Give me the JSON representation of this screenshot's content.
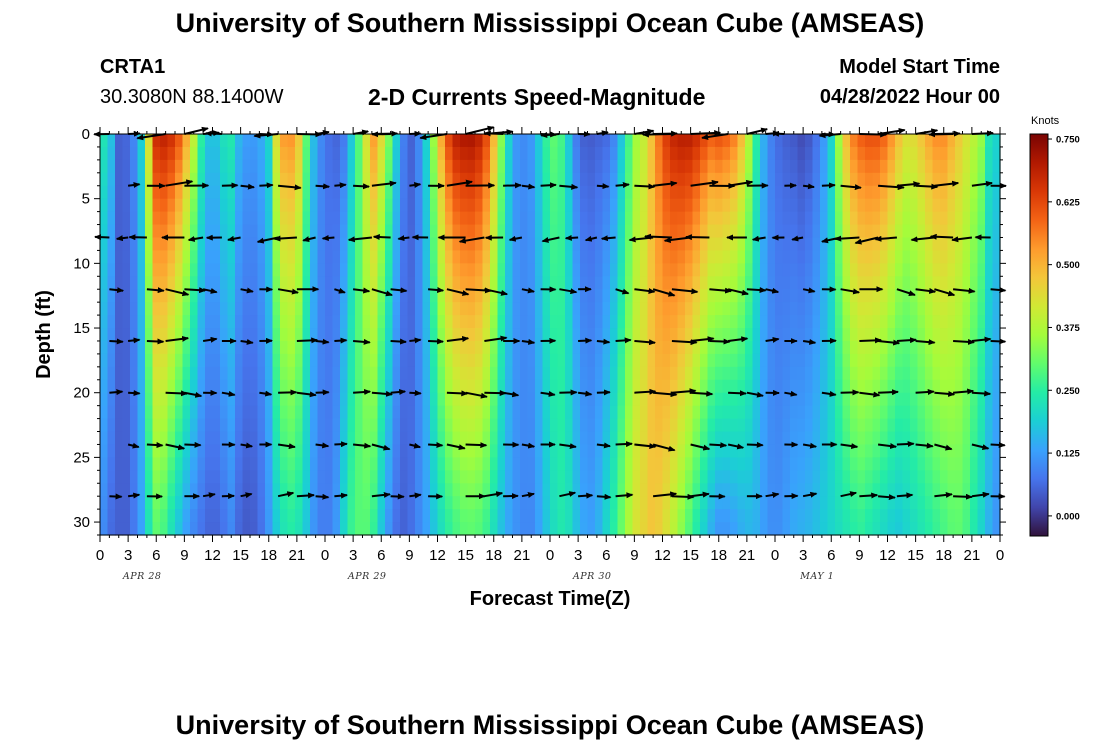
{
  "header": {
    "title": "University of Southern Mississippi Ocean Cube (AMSEAS)",
    "station_id": "CRTA1",
    "station_coords": "30.3080N  88.1400W",
    "plot_title": "2-D Currents Speed-Magnitude",
    "model_start_label": "Model Start Time",
    "model_start_value": "04/28/2022 Hour 00"
  },
  "footer": {
    "title": "University of Southern Mississippi Ocean Cube (AMSEAS)"
  },
  "colors": {
    "ramp": [
      "#30123b",
      "#4145ab",
      "#4675ed",
      "#39a2fc",
      "#1bcfd4",
      "#24eca6",
      "#61fc6c",
      "#a4fc3b",
      "#d1e834",
      "#f3c63a",
      "#fe9b2d",
      "#f36315",
      "#d93806",
      "#b11901",
      "#7a0403"
    ],
    "arrow": "#000000"
  },
  "chart_data": {
    "type": "heatmap",
    "title": "2-D Currents Speed-Magnitude",
    "xlabel": "Forecast Time(Z)",
    "ylabel": "Depth (ft)",
    "units": "Knots",
    "x_hours_range": [
      0,
      96
    ],
    "ylim": [
      0,
      31
    ],
    "y_ticks": [
      0,
      5,
      10,
      15,
      20,
      25,
      30
    ],
    "x_tick_labels": [
      "0",
      "3",
      "6",
      "9",
      "12",
      "15",
      "18",
      "21",
      "0",
      "3",
      "6",
      "9",
      "12",
      "15",
      "18",
      "21",
      "0",
      "3",
      "6",
      "9",
      "12",
      "15",
      "18",
      "21",
      "0",
      "3",
      "6",
      "9",
      "12",
      "15",
      "18",
      "21",
      "0"
    ],
    "day_labels": [
      "APR 28",
      "APR 29",
      "APR 30",
      "MAY 1"
    ],
    "colorbar": {
      "range": [
        -0.04,
        0.76
      ],
      "ticks": [
        0.0,
        0.125,
        0.25,
        0.375,
        0.5,
        0.625,
        0.75
      ],
      "tick_labels": [
        "0.000",
        "0.125",
        "0.250",
        "0.375",
        "0.500",
        "0.625",
        "0.750"
      ]
    },
    "depths_ft": [
      0,
      4,
      8,
      12,
      16,
      20,
      24,
      28
    ],
    "speed_profiles": {
      "hours": [
        0,
        1.5,
        2,
        3,
        4,
        5,
        5.5,
        6.5,
        8,
        9,
        10,
        11,
        12,
        13,
        14,
        15,
        16,
        17,
        18,
        19,
        20,
        21,
        22,
        23,
        24,
        25,
        26,
        27,
        28,
        29,
        30,
        31,
        32,
        33,
        34,
        35,
        36,
        37,
        38,
        39,
        40,
        41,
        42,
        43,
        44,
        45,
        46,
        47,
        48,
        49,
        50,
        51,
        52,
        53,
        54,
        55,
        56,
        57,
        58,
        59,
        60,
        61,
        62,
        63,
        64,
        65,
        66,
        67,
        68,
        69,
        70,
        71,
        72,
        73,
        74,
        75,
        76,
        77,
        78,
        79,
        80,
        81,
        82,
        83,
        84,
        85,
        86,
        87,
        88,
        89,
        90,
        91,
        92,
        93,
        94,
        95,
        96
      ],
      "surface": [
        0.26,
        0.15,
        0.05,
        0.06,
        0.12,
        0.3,
        0.65,
        0.7,
        0.66,
        0.55,
        0.4,
        0.22,
        0.15,
        0.22,
        0.24,
        0.14,
        0.12,
        0.13,
        0.2,
        0.5,
        0.56,
        0.52,
        0.3,
        0.13,
        0.08,
        0.05,
        0.08,
        0.2,
        0.35,
        0.55,
        0.45,
        0.3,
        0.12,
        0.04,
        0.1,
        0.22,
        0.45,
        0.62,
        0.7,
        0.72,
        0.72,
        0.66,
        0.5,
        0.3,
        0.13,
        0.1,
        0.12,
        0.2,
        0.3,
        0.3,
        0.18,
        0.06,
        0.04,
        0.05,
        0.06,
        0.1,
        0.22,
        0.35,
        0.4,
        0.5,
        0.62,
        0.68,
        0.7,
        0.7,
        0.66,
        0.6,
        0.62,
        0.6,
        0.55,
        0.42,
        0.25,
        0.12,
        0.07,
        0.05,
        0.04,
        0.02,
        0.05,
        0.1,
        0.2,
        0.4,
        0.55,
        0.6,
        0.62,
        0.62,
        0.58,
        0.5,
        0.44,
        0.45,
        0.5,
        0.55,
        0.55,
        0.5,
        0.45,
        0.4,
        0.35,
        0.2,
        0.2
      ],
      "bottom": [
        0.12,
        0.05,
        0.05,
        0.05,
        0.1,
        0.18,
        0.3,
        0.3,
        0.2,
        0.14,
        0.1,
        0.07,
        0.05,
        0.07,
        0.1,
        0.05,
        0.04,
        0.06,
        0.12,
        0.2,
        0.25,
        0.24,
        0.18,
        0.1,
        0.08,
        0.1,
        0.2,
        0.28,
        0.3,
        0.28,
        0.18,
        0.1,
        0.05,
        0.06,
        0.1,
        0.14,
        0.2,
        0.25,
        0.28,
        0.3,
        0.3,
        0.28,
        0.22,
        0.16,
        0.12,
        0.1,
        0.1,
        0.14,
        0.2,
        0.24,
        0.22,
        0.16,
        0.12,
        0.14,
        0.2,
        0.26,
        0.34,
        0.42,
        0.45,
        0.48,
        0.45,
        0.4,
        0.34,
        0.28,
        0.22,
        0.16,
        0.12,
        0.12,
        0.14,
        0.16,
        0.15,
        0.12,
        0.1,
        0.12,
        0.14,
        0.15,
        0.16,
        0.18,
        0.2,
        0.22,
        0.24,
        0.26,
        0.24,
        0.22,
        0.2,
        0.18,
        0.2,
        0.22,
        0.24,
        0.26,
        0.28,
        0.3,
        0.3,
        0.25,
        0.2,
        0.14,
        0.1
      ]
    },
    "vectors_note": "Current direction arrows plotted at depths 0,4,8,12,16,20,24,28 ft; mostly eastward at depth, variable near surface."
  }
}
